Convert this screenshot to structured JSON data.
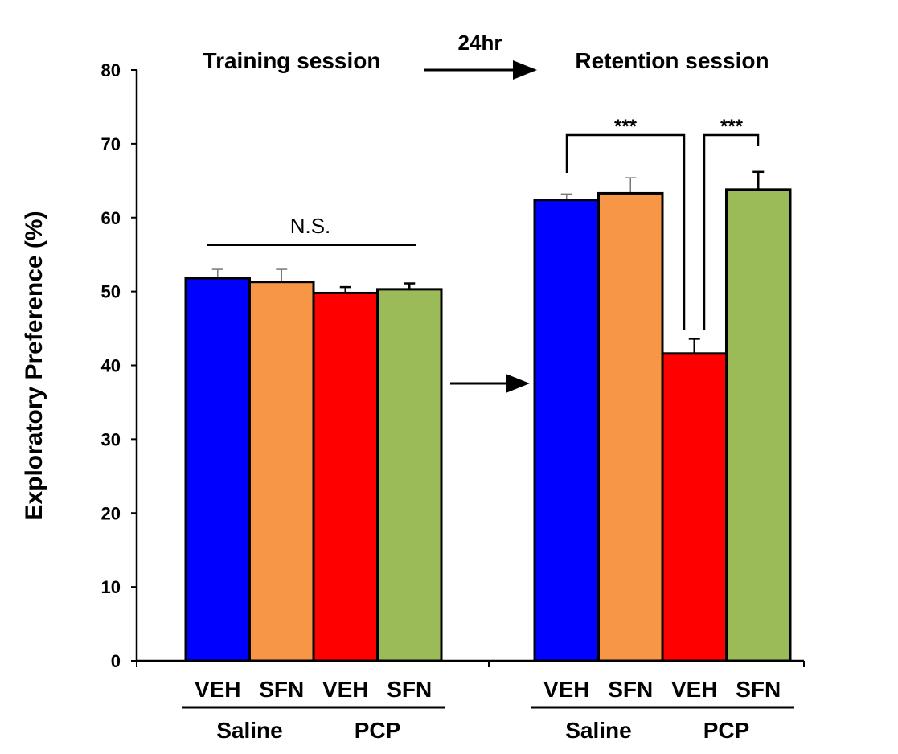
{
  "chart_data": {
    "type": "bar",
    "ylabel": "Exploratory Preference (%)",
    "ylim": [
      0,
      80
    ],
    "yticks": [
      0,
      10,
      20,
      30,
      40,
      50,
      60,
      70,
      80
    ],
    "grid": false,
    "panels": [
      {
        "title": "Training session",
        "categories": [
          "VEH",
          "SFN",
          "VEH",
          "SFN"
        ],
        "groups": [
          {
            "label": "Saline",
            "members": [
              0,
              1
            ]
          },
          {
            "label": "PCP",
            "members": [
              2,
              3
            ]
          }
        ],
        "values": [
          51.8,
          51.3,
          49.8,
          50.3
        ],
        "errors": [
          1.2,
          1.7,
          0.8,
          0.8
        ],
        "annotation": "N.S."
      },
      {
        "title": "Retention session",
        "categories": [
          "VEH",
          "SFN",
          "VEH",
          "SFN"
        ],
        "groups": [
          {
            "label": "Saline",
            "members": [
              0,
              1
            ]
          },
          {
            "label": "PCP",
            "members": [
              2,
              3
            ]
          }
        ],
        "values": [
          62.4,
          63.3,
          41.6,
          63.8
        ],
        "errors": [
          0.8,
          2.1,
          2.0,
          2.4
        ],
        "significance": [
          {
            "pair": [
              0,
              2
            ],
            "label": "***"
          },
          {
            "pair": [
              2,
              3
            ],
            "label": "***"
          }
        ]
      }
    ],
    "colors": [
      "#0000ff",
      "#f79646",
      "#ff0000",
      "#9bbb59"
    ],
    "interval_label": "24hr"
  }
}
